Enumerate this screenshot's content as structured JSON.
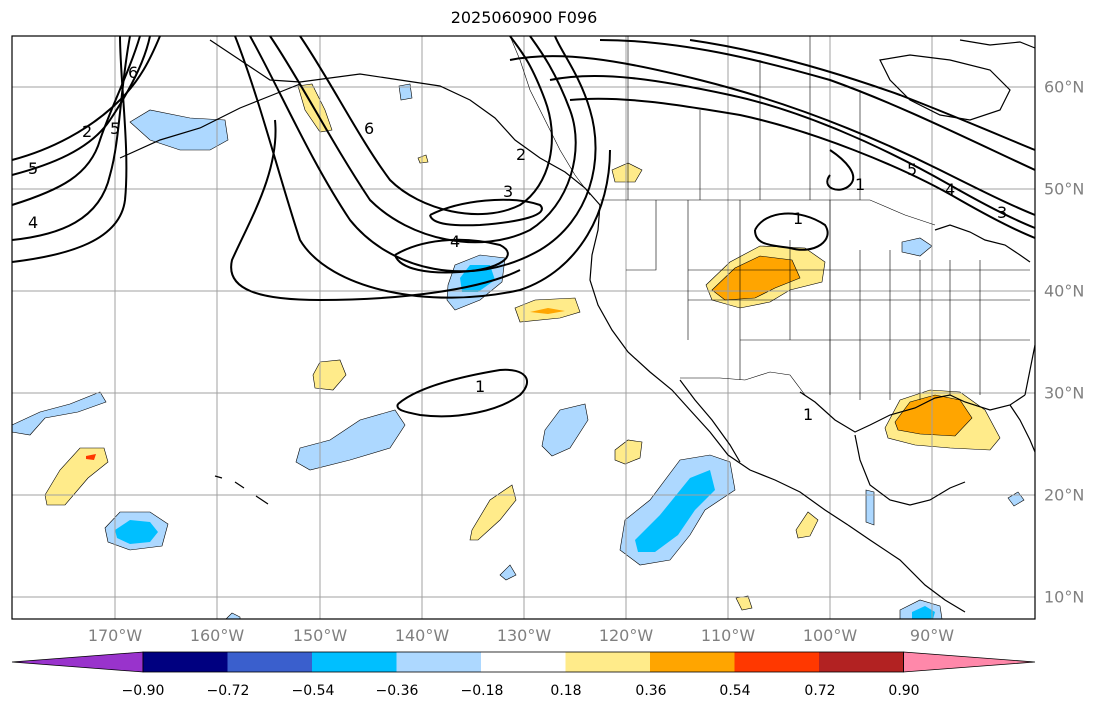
{
  "title": "2025060900 F096",
  "longitude_labels": [
    "170°W",
    "160°W",
    "150°W",
    "140°W",
    "130°W",
    "120°W",
    "110°W",
    "100°W",
    "90°W"
  ],
  "latitude_labels": [
    "60°N",
    "50°N",
    "40°N",
    "30°N",
    "20°N",
    "10°N"
  ],
  "contour_labels": [
    "6",
    "5",
    "2",
    "4",
    "5",
    "6",
    "3",
    "4",
    "2",
    "1",
    "1",
    "5",
    "4",
    "3",
    "1",
    "1"
  ],
  "colorbar": {
    "tick_labels": [
      "−0.90",
      "−0.72",
      "−0.54",
      "−0.36",
      "−0.18",
      "0.18",
      "0.36",
      "0.54",
      "0.72",
      "0.90"
    ],
    "colors": [
      "#9933cc",
      "#000080",
      "#3a5fcd",
      "#00bfff",
      "#add8ff",
      "#ffffff",
      "#ffeb8a",
      "#ffa500",
      "#ff3800",
      "#b22222",
      "#ff88aa"
    ]
  },
  "colors": {
    "light_blue": "#add8ff",
    "mid_blue": "#00bfff",
    "light_yellow": "#ffeb8a",
    "orange": "#ffa500",
    "red": "#ff3800",
    "grid": "#a0a0a0",
    "contour": "#000000"
  }
}
